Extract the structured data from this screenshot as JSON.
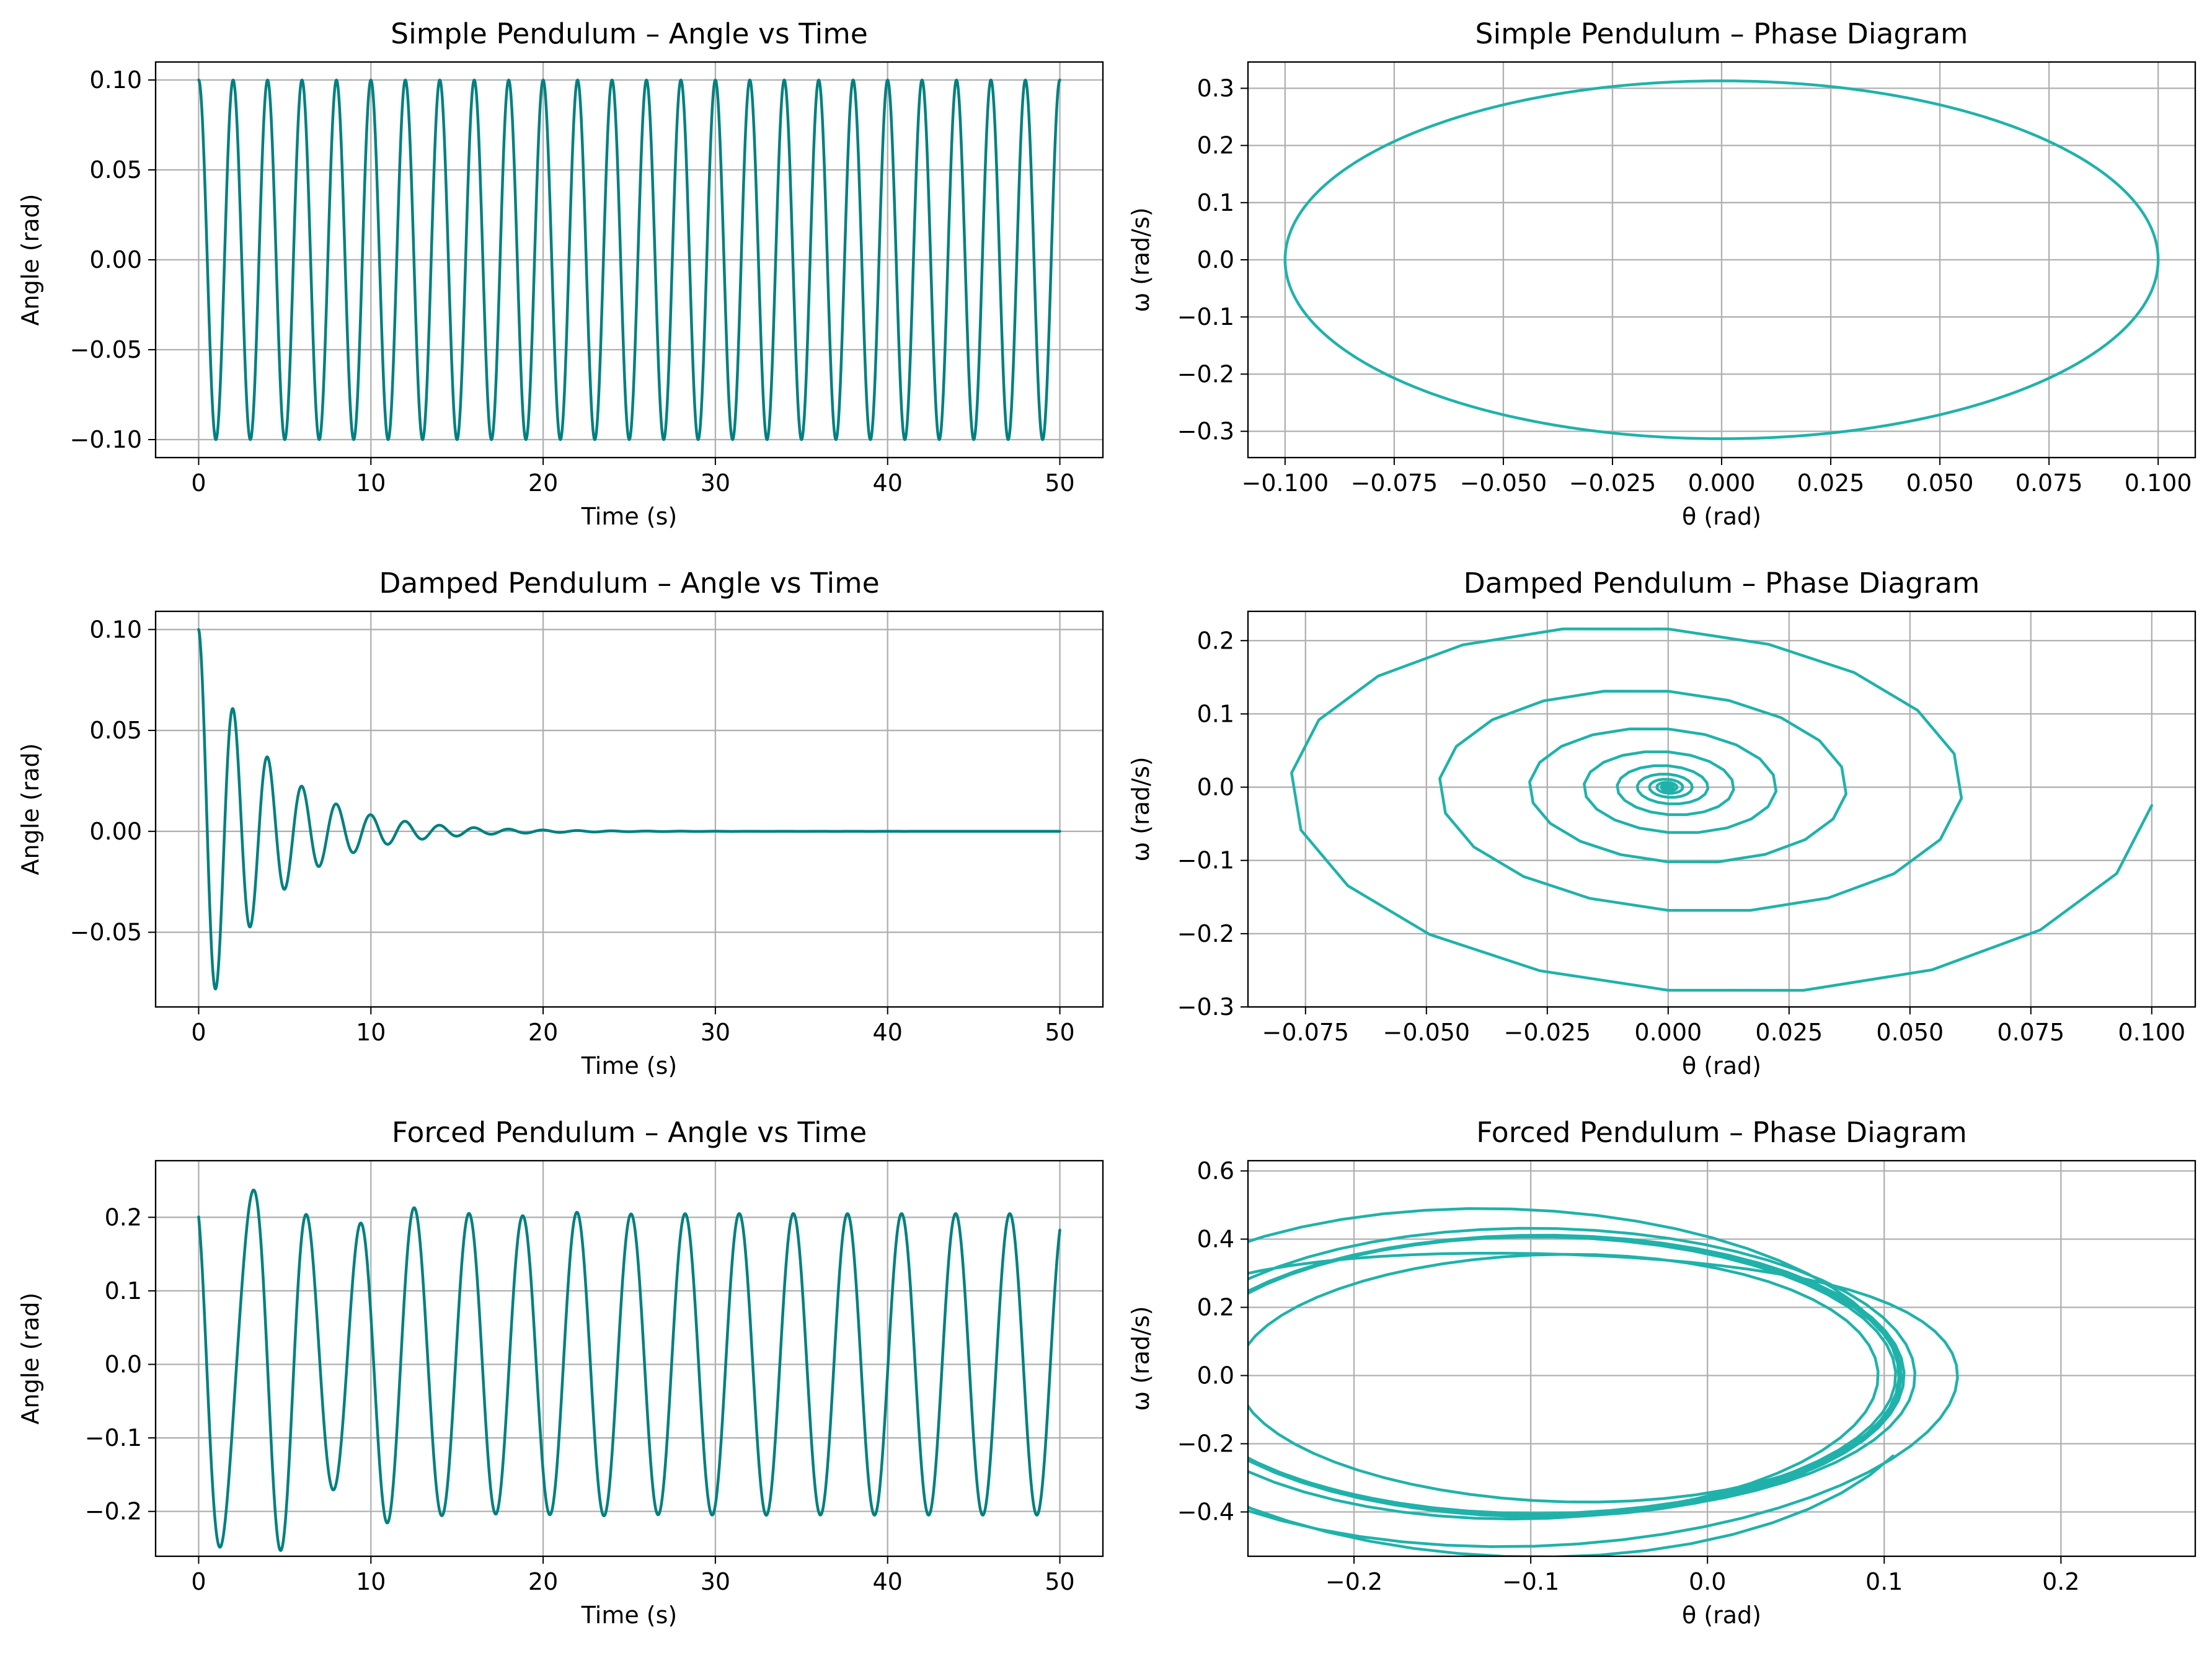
{
  "figure": {
    "background": "#ffffff"
  },
  "chart_data": [
    {
      "id": "simple-time",
      "type": "line",
      "title": "Simple Pendulum – Angle vs Time",
      "xlabel": "Time (s)",
      "ylabel": "Angle (rad)",
      "xlim": [
        -2.5,
        52.5
      ],
      "ylim": [
        -0.11,
        0.11
      ],
      "xticks": [
        0,
        10,
        20,
        30,
        40,
        50
      ],
      "yticks": [
        -0.1,
        -0.05,
        0.0,
        0.05,
        0.1
      ],
      "xtick_labels": [
        "0",
        "10",
        "20",
        "30",
        "40",
        "50"
      ],
      "ytick_labels": [
        "−0.10",
        "−0.05",
        "0.00",
        "0.05",
        "0.10"
      ],
      "grid": true,
      "color": "#008080",
      "series": [
        {
          "model": {
            "kind": "simple_time",
            "theta0": 0.1,
            "period": 2.0,
            "t_end": 50
          }
        }
      ]
    },
    {
      "id": "simple-phase",
      "type": "line",
      "title": "Simple Pendulum – Phase Diagram",
      "xlabel": "θ (rad)",
      "ylabel": "ω (rad/s)",
      "xlim": [
        -0.1085,
        0.1085
      ],
      "ylim": [
        -0.346,
        0.346
      ],
      "xticks": [
        -0.1,
        -0.075,
        -0.05,
        -0.025,
        0.0,
        0.025,
        0.05,
        0.075,
        0.1
      ],
      "yticks": [
        -0.3,
        -0.2,
        -0.1,
        0.0,
        0.1,
        0.2,
        0.3
      ],
      "xtick_labels": [
        "−0.100",
        "−0.075",
        "−0.050",
        "−0.025",
        "0.000",
        "0.025",
        "0.050",
        "0.075",
        "0.100"
      ],
      "ytick_labels": [
        "−0.3",
        "−0.2",
        "−0.1",
        "0.0",
        "0.1",
        "0.2",
        "0.3"
      ],
      "grid": true,
      "color": "#20b2aa",
      "series": [
        {
          "model": {
            "kind": "simple_phase",
            "theta_amp": 0.1,
            "omega_amp": 0.313
          }
        }
      ]
    },
    {
      "id": "damped-time",
      "type": "line",
      "title": "Damped Pendulum – Angle vs Time",
      "xlabel": "Time (s)",
      "ylabel": "Angle (rad)",
      "xlim": [
        -2.5,
        52.5
      ],
      "ylim": [
        -0.087,
        0.109
      ],
      "xticks": [
        0,
        10,
        20,
        30,
        40,
        50
      ],
      "yticks": [
        -0.05,
        0.0,
        0.05,
        0.1
      ],
      "xtick_labels": [
        "0",
        "10",
        "20",
        "30",
        "40",
        "50"
      ],
      "ytick_labels": [
        "−0.05",
        "0.00",
        "0.05",
        "0.10"
      ],
      "grid": true,
      "color": "#008080",
      "series": [
        {
          "model": {
            "kind": "damped_time",
            "theta0": 0.1,
            "period": 2.0,
            "decay": 0.25,
            "t_end": 50
          }
        }
      ]
    },
    {
      "id": "damped-phase",
      "type": "line",
      "title": "Damped Pendulum – Phase Diagram",
      "xlabel": "θ (rad)",
      "ylabel": "ω (rad/s)",
      "xlim": [
        -0.0869,
        0.109
      ],
      "ylim": [
        -0.3,
        0.24
      ],
      "xticks": [
        -0.075,
        -0.05,
        -0.025,
        0.0,
        0.025,
        0.05,
        0.075,
        0.1
      ],
      "yticks": [
        -0.3,
        -0.2,
        -0.1,
        0.0,
        0.1,
        0.2
      ],
      "xtick_labels": [
        "−0.075",
        "−0.050",
        "−0.025",
        "0.000",
        "0.025",
        "0.050",
        "0.075",
        "0.100"
      ],
      "ytick_labels": [
        "−0.3",
        "−0.2",
        "−0.1",
        "0.0",
        "0.1",
        "0.2"
      ],
      "grid": true,
      "color": "#20b2aa",
      "series": [
        {
          "model": {
            "kind": "damped_phase",
            "theta0": 0.1,
            "period": 2.0,
            "decay": 0.25,
            "t_end": 50
          }
        }
      ]
    },
    {
      "id": "forced-time",
      "type": "line",
      "title": "Forced Pendulum – Angle vs Time",
      "xlabel": "Time (s)",
      "ylabel": "Angle (rad)",
      "xlim": [
        -2.5,
        52.5
      ],
      "ylim": [
        -0.261,
        0.277
      ],
      "xticks": [
        0,
        10,
        20,
        30,
        40,
        50
      ],
      "yticks": [
        -0.2,
        -0.1,
        0.0,
        0.1,
        0.2
      ],
      "xtick_labels": [
        "0",
        "10",
        "20",
        "30",
        "40",
        "50"
      ],
      "ytick_labels": [
        "−0.2",
        "−0.1",
        "0.0",
        "0.1",
        "0.2"
      ],
      "grid": true,
      "color": "#008080",
      "series": [
        {
          "model": {
            "kind": "forced_time",
            "t_end": 50
          }
        }
      ]
    },
    {
      "id": "forced-phase",
      "type": "line",
      "title": "Forced Pendulum – Phase Diagram",
      "xlabel": "θ (rad)",
      "ylabel": "ω (rad/s)",
      "xlim": [
        -0.26,
        0.276
      ],
      "ylim": [
        -0.53,
        0.63
      ],
      "xticks": [
        -0.2,
        -0.1,
        0.0,
        0.1,
        0.2
      ],
      "yticks": [
        -0.4,
        -0.2,
        0.0,
        0.2,
        0.4,
        0.6
      ],
      "xtick_labels": [
        "−0.2",
        "−0.1",
        "0.0",
        "0.1",
        "0.2"
      ],
      "ytick_labels": [
        "−0.4",
        "−0.2",
        "0.0",
        "0.2",
        "0.4",
        "0.6"
      ],
      "grid": true,
      "color": "#20b2aa",
      "series": [
        {
          "model": {
            "kind": "forced_phase",
            "t_end": 50
          }
        }
      ]
    }
  ]
}
